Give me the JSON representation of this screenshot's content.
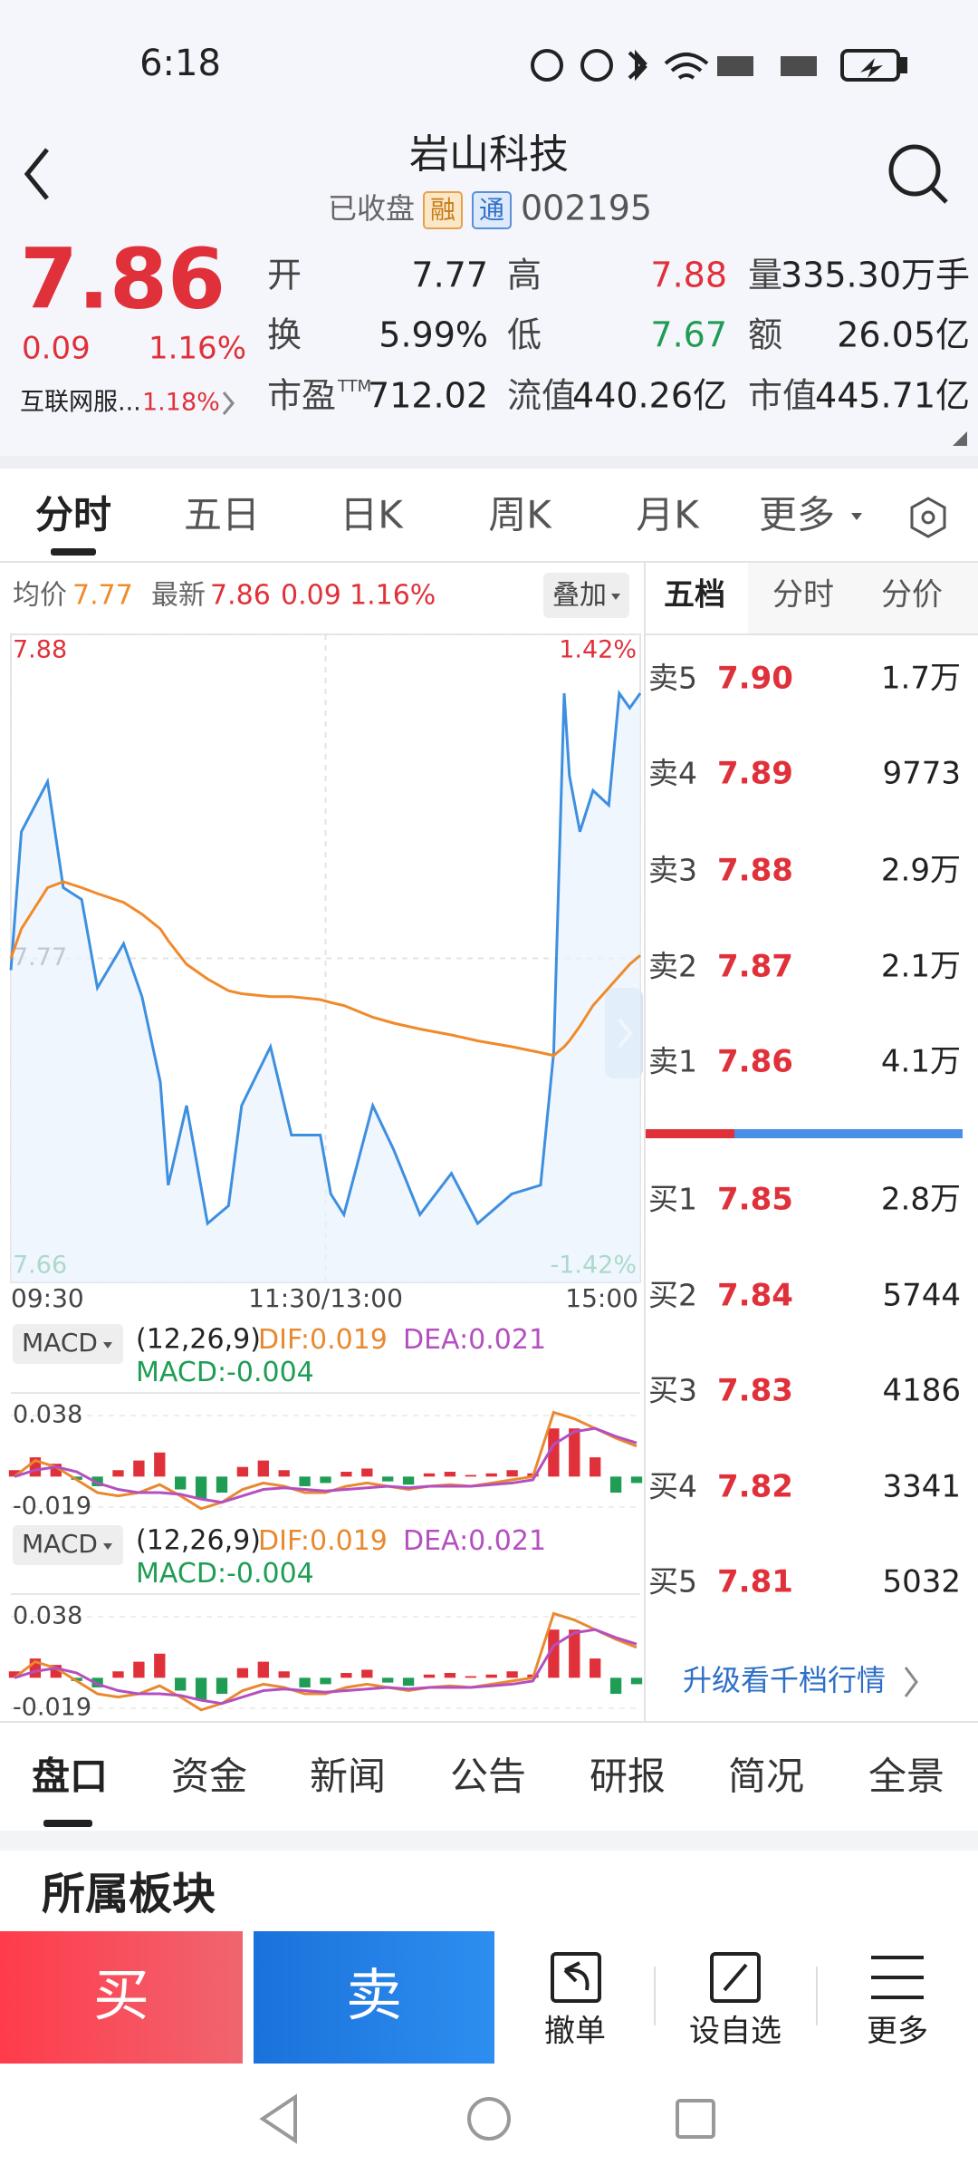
{
  "status_bar": {
    "time": "6:18"
  },
  "header": {
    "title": "岩山科技",
    "status": "已收盘",
    "badge_rong": "融",
    "badge_tong": "通",
    "code": "002195"
  },
  "quote": {
    "price": "7.86",
    "change": "0.09",
    "change_pct": "1.16%",
    "sector": "互联网服...",
    "sector_pct": "1.18%",
    "stats": [
      {
        "label": "开",
        "value": "7.77"
      },
      {
        "label": "高",
        "value": "7.88"
      },
      {
        "label": "量",
        "value": "335.30万手"
      },
      {
        "label": "换",
        "value": "5.99%"
      },
      {
        "label": "低",
        "value": "7.67"
      },
      {
        "label": "额",
        "value": "26.05亿"
      },
      {
        "label": "市盈",
        "suffix": "TTM",
        "value": "712.02"
      },
      {
        "label": "流值",
        "value": "440.26亿"
      },
      {
        "label": "市值",
        "value": "445.71亿"
      }
    ]
  },
  "chart_tabs": [
    "分时",
    "五日",
    "日K",
    "周K",
    "月K",
    "更多"
  ],
  "intraday": {
    "avg": "7.77",
    "latest": "7.86",
    "change": "0.09",
    "change_pct": "1.16%",
    "overlay": "叠加"
  },
  "chart_data": [
    {
      "type": "line",
      "x": [
        0,
        4,
        14,
        20,
        27,
        33,
        43,
        50,
        57,
        60,
        67,
        75,
        83,
        88,
        99,
        107,
        118,
        122,
        127,
        138,
        146,
        156,
        168,
        178,
        191,
        202,
        207,
        211,
        213,
        217,
        222,
        228,
        232,
        236,
        240
      ],
      "series": [
        {
          "name": "最新",
          "color": "#3d8fe0",
          "values": [
            7.766,
            7.813,
            7.83,
            7.794,
            7.79,
            7.76,
            7.775,
            7.757,
            7.728,
            7.693,
            7.72,
            7.68,
            7.686,
            7.72,
            7.74,
            7.71,
            7.71,
            7.69,
            7.683,
            7.72,
            7.705,
            7.683,
            7.697,
            7.68,
            7.69,
            7.693,
            7.738,
            7.86,
            7.832,
            7.813,
            7.827,
            7.822,
            7.86,
            7.855,
            7.86
          ]
        },
        {
          "name": "均价",
          "color": "#f08a2a",
          "values": [
            7.77,
            7.78,
            7.794,
            7.796,
            7.794,
            7.792,
            7.789,
            7.785,
            7.78,
            7.776,
            7.768,
            7.763,
            7.759,
            7.758,
            7.757,
            7.757,
            7.756,
            7.755,
            7.754,
            7.75,
            7.748,
            7.746,
            7.744,
            7.742,
            7.74,
            7.738,
            7.737,
            7.74,
            7.742,
            7.747,
            7.754,
            7.76,
            7.764,
            7.768,
            7.771
          ]
        }
      ],
      "xlim": [
        0,
        240
      ],
      "xticks": [
        {
          "value": 0,
          "label": "09:30"
        },
        {
          "value": 120,
          "label": "11:30/13:00"
        },
        {
          "value": 240,
          "label": "15:00"
        }
      ],
      "ylim": [
        7.66,
        7.88
      ],
      "yticks": [
        7.66,
        7.77,
        7.88
      ],
      "y2lim": [
        -1.42,
        1.42
      ],
      "y2ticks": [
        {
          "value": -1.42,
          "label": "-1.42%"
        },
        {
          "value": 1.42,
          "label": "1.42%"
        }
      ],
      "grid": true
    },
    {
      "type": "macd",
      "indicator": "MACD",
      "params": "(12,26,9)",
      "separator": ":",
      "x": [
        0,
        8,
        16,
        24,
        32,
        40,
        48,
        56,
        64,
        72,
        80,
        88,
        96,
        104,
        112,
        120,
        128,
        136,
        144,
        152,
        160,
        168,
        176,
        184,
        192,
        200,
        208,
        216,
        224,
        232,
        240
      ],
      "series": [
        {
          "name": "DIF",
          "color": "#e8892f",
          "values": [
            0,
            0.01,
            0.006,
            -0.002,
            -0.01,
            -0.012,
            -0.01,
            -0.005,
            -0.012,
            -0.02,
            -0.016,
            -0.008,
            -0.004,
            -0.006,
            -0.01,
            -0.01,
            -0.006,
            -0.004,
            -0.006,
            -0.008,
            -0.006,
            -0.005,
            -0.006,
            -0.004,
            -0.002,
            0,
            0.04,
            0.036,
            0.03,
            0.024,
            0.019
          ]
        },
        {
          "name": "DEA",
          "color": "#b44fc0",
          "values": [
            0,
            0.004,
            0.006,
            0.003,
            -0.004,
            -0.008,
            -0.01,
            -0.01,
            -0.011,
            -0.014,
            -0.016,
            -0.012,
            -0.008,
            -0.007,
            -0.008,
            -0.009,
            -0.008,
            -0.007,
            -0.006,
            -0.007,
            -0.006,
            -0.006,
            -0.006,
            -0.005,
            -0.004,
            -0.002,
            0.02,
            0.028,
            0.03,
            0.025,
            0.021
          ]
        },
        {
          "name": "MACD",
          "color": "#1f9d55",
          "color_up": "#e0313a",
          "color_down": "#1f9d55",
          "values": [
            0.004,
            0.012,
            0.008,
            -0.002,
            -0.006,
            0.004,
            0.01,
            0.015,
            -0.008,
            -0.014,
            -0.01,
            0.006,
            0.01,
            0.004,
            -0.006,
            -0.004,
            0.003,
            0.005,
            -0.003,
            -0.005,
            0.002,
            0.003,
            0.001,
            0.002,
            0.004,
            0.002,
            0.03,
            0.03,
            0.012,
            -0.01,
            -0.004
          ]
        }
      ],
      "ylim": [
        -0.019,
        0.038
      ],
      "yticks": [
        -0.019,
        0.038
      ]
    }
  ],
  "order_book": {
    "tabs": [
      "五档",
      "分时",
      "分价"
    ],
    "asks": [
      {
        "label": "卖5",
        "price": "7.90",
        "volume": "1.7万"
      },
      {
        "label": "卖4",
        "price": "7.89",
        "volume": "9773"
      },
      {
        "label": "卖3",
        "price": "7.88",
        "volume": "2.9万"
      },
      {
        "label": "卖2",
        "price": "7.87",
        "volume": "2.1万"
      },
      {
        "label": "卖1",
        "price": "7.86",
        "volume": "4.1万"
      }
    ],
    "bids": [
      {
        "label": "买1",
        "price": "7.85",
        "volume": "2.8万"
      },
      {
        "label": "买2",
        "price": "7.84",
        "volume": "5744"
      },
      {
        "label": "买3",
        "price": "7.83",
        "volume": "4186"
      },
      {
        "label": "买4",
        "price": "7.82",
        "volume": "3341"
      },
      {
        "label": "买5",
        "price": "7.81",
        "volume": "5032"
      }
    ],
    "upgrade": "升级看千档行情"
  },
  "bottom_tabs": [
    "盘口",
    "资金",
    "新闻",
    "公告",
    "研报",
    "简况",
    "全景"
  ],
  "section_title": "所属板块",
  "actions": {
    "buy": "买",
    "sell": "卖",
    "tools": [
      "撤单",
      "设自选",
      "更多"
    ]
  }
}
